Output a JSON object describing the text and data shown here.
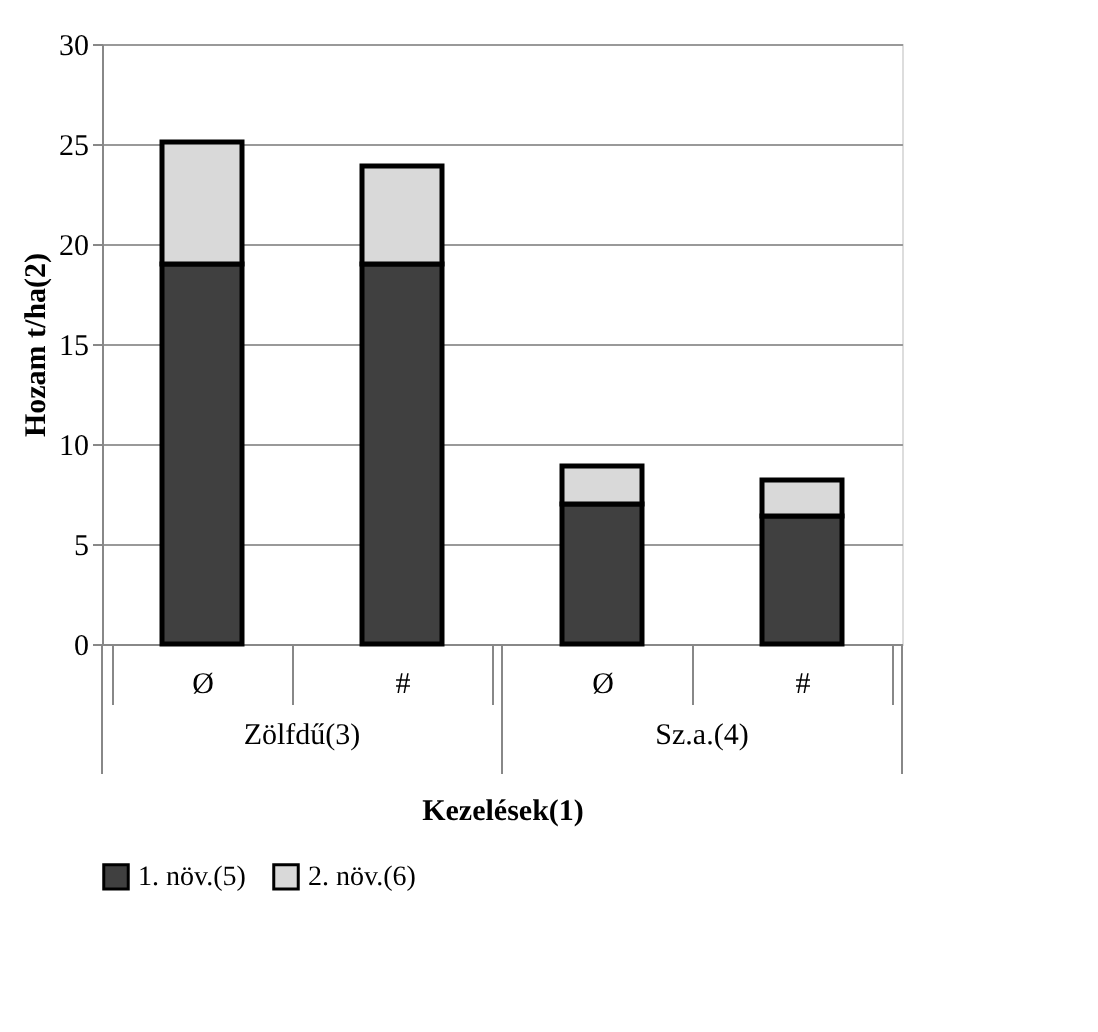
{
  "chart_data": {
    "type": "bar",
    "stacked": true,
    "xlabel": "Kezelések(1)",
    "ylabel": "Hozam t/ha(2)",
    "categories": [
      "Ø",
      "#",
      "Ø",
      "#"
    ],
    "series": [
      {
        "name": "1. növ.(5)",
        "color": "#404040",
        "values": [
          19,
          19,
          7,
          6.4
        ]
      },
      {
        "name": "2. növ.(6)",
        "color": "#d9d9d9",
        "values": [
          6.1,
          4.9,
          1.9,
          1.8
        ]
      }
    ],
    "annotations": [
      "Zölfdű(3)",
      "Sz.a.(4)"
    ],
    "ylim": [
      0,
      30
    ],
    "yticks": [
      0,
      5,
      10,
      15,
      20,
      25,
      30
    ],
    "grid": "y",
    "legend": "bottom"
  }
}
